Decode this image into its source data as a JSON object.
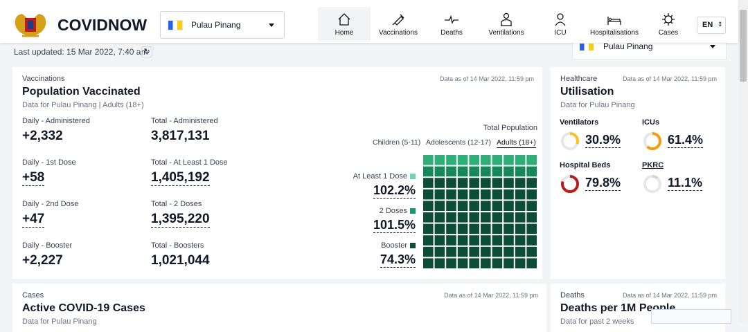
{
  "header": {
    "brand": "COVIDNOW",
    "state": "Pulau Pinang",
    "nav": [
      "Home",
      "Vaccinations",
      "Deaths",
      "Ventilations",
      "ICU",
      "Hospitalisations",
      "Cases"
    ],
    "language": "EN"
  },
  "last_updated": "Last updated: 15 Mar 2022, 7:40 am",
  "state_selector": "Pulau Pinang",
  "vaccination_card": {
    "category": "Vaccinations",
    "title": "Population Vaccinated",
    "subtitle": "Data for Pulau Pinang | Adults (18+)",
    "data_as_of": "Data as of 14 Mar 2022, 11:59 pm",
    "stats": [
      {
        "label": "Daily - Administered",
        "value": "+2,332"
      },
      {
        "label": "Total - Administered",
        "value": "3,817,131"
      },
      {
        "label": "Daily - 1st Dose",
        "value": "+58"
      },
      {
        "label": "Total - At Least 1 Dose",
        "value": "1,405,192"
      },
      {
        "label": "Daily - 2nd Dose",
        "value": "+47"
      },
      {
        "label": "Total - 2 Doses",
        "value": "1,395,220"
      },
      {
        "label": "Daily - Booster",
        "value": "+2,227"
      },
      {
        "label": "Total - Boosters",
        "value": "1,021,044"
      }
    ],
    "total_population_label": "Total Population",
    "tabs": [
      "Children (5-11)",
      "Adolescents (12-17)",
      "Adults (18+)"
    ],
    "doses": [
      {
        "label": "At Least 1 Dose",
        "value": "102.2%"
      },
      {
        "label": "2 Doses",
        "value": "101.5%"
      },
      {
        "label": "Booster",
        "value": "74.3%"
      }
    ]
  },
  "utilisation_card": {
    "category": "Healthcare",
    "title": "Utilisation",
    "subtitle": "Data for Pulau Pinang",
    "data_as_of": "Data as of 14 Mar 2022, 11:59 pm",
    "metrics": [
      {
        "label": "Ventilators",
        "value": 30.9,
        "value_label": "30.9%"
      },
      {
        "label": "ICUs",
        "value": 61.4,
        "value_label": "61.4%"
      },
      {
        "label": "Hospital Beds",
        "value": 79.8,
        "value_label": "79.8%"
      },
      {
        "label": "PKRC",
        "value": 11.1,
        "value_label": "11.1%"
      }
    ]
  },
  "cases_card": {
    "category": "Cases",
    "title": "Active COVID-19 Cases",
    "subtitle": "Data for Pulau Pinang",
    "data_as_of": "Data as of 14 Mar 2022, 11:59 pm"
  },
  "deaths_card": {
    "category": "Deaths",
    "title": "Deaths per 1M People",
    "subtitle": "Data for past 2 weeks",
    "data_as_of": "Data as of 14 Mar 2022, 11:59 pm"
  }
}
